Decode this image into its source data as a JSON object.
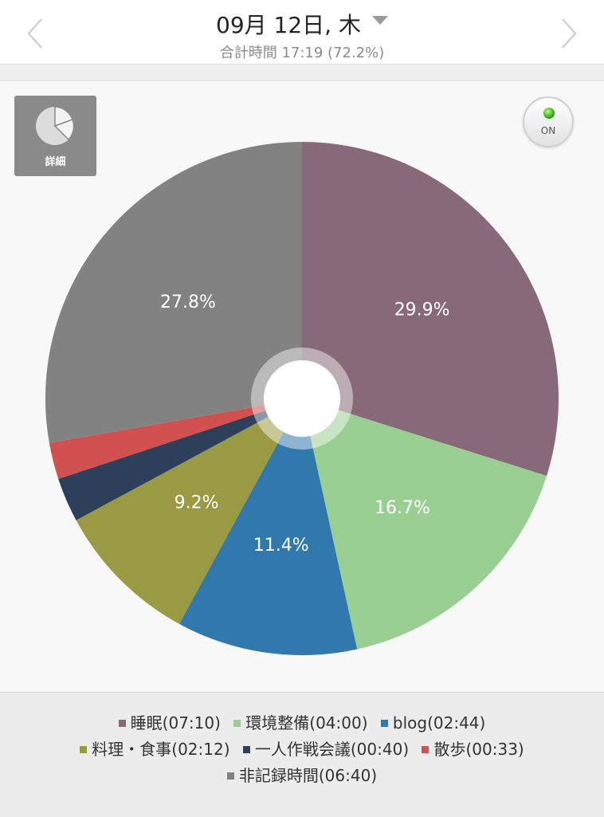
{
  "header": {
    "date_title": "09月 12日, 木",
    "summary": "合計時間 17:19 (72.2%)"
  },
  "controls": {
    "detail_label": "詳細",
    "toggle_label": "ON"
  },
  "colors": {
    "hole_ring": "#cfcfcf",
    "label_text": "#ffffff"
  },
  "chart_data": {
    "type": "pie",
    "donut_hole": true,
    "slices": [
      {
        "label": "睡眠",
        "time": "07:10",
        "percent": 29.9,
        "color": "#87697a",
        "show_label": true
      },
      {
        "label": "環境整備",
        "time": "04:00",
        "percent": 16.7,
        "color": "#9acf93",
        "show_label": true
      },
      {
        "label": "blog",
        "time": "02:44",
        "percent": 11.4,
        "color": "#3178ad",
        "show_label": true
      },
      {
        "label": "料理・食事",
        "time": "02:12",
        "percent": 9.2,
        "color": "#9b9a44",
        "show_label": true
      },
      {
        "label": "一人作戦会議",
        "time": "00:40",
        "percent": 2.8,
        "color": "#2e4059",
        "show_label": false
      },
      {
        "label": "散歩",
        "time": "00:33",
        "percent": 2.3,
        "color": "#d15050",
        "show_label": false
      },
      {
        "label": "非記録時間",
        "time": "06:40",
        "percent": 27.8,
        "color": "#828282",
        "show_label": true
      }
    ]
  },
  "legend": {
    "rows": [
      [
        {
          "text": "睡眠(07:10)",
          "color": "#87697a"
        },
        {
          "text": "環境整備(04:00)",
          "color": "#9acf93"
        },
        {
          "text": "blog(02:44)",
          "color": "#3178ad"
        }
      ],
      [
        {
          "text": "料理・食事(02:12)",
          "color": "#9b9a44"
        },
        {
          "text": "一人作戦会議(00:40)",
          "color": "#2e4059"
        },
        {
          "text": "散歩(00:33)",
          "color": "#d15050"
        }
      ],
      [
        {
          "text": "非記録時間(06:40)",
          "color": "#828282"
        }
      ]
    ]
  }
}
